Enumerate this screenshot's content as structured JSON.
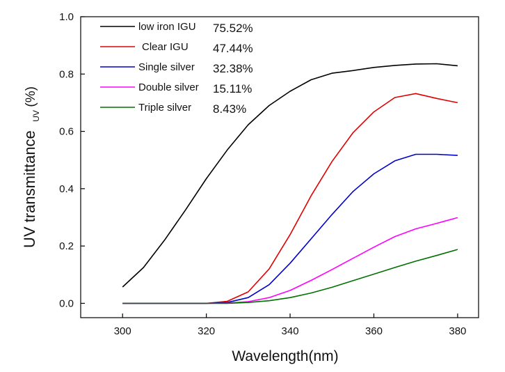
{
  "chart_data": {
    "type": "line",
    "title": "",
    "xlabel": "Wavelength(nm)",
    "ylabel_main": "UV transmittance",
    "ylabel_sub": "UV",
    "ylabel_suffix": "(%)",
    "xlim": [
      290,
      385
    ],
    "ylim": [
      -0.05,
      1.0
    ],
    "xticks": [
      300,
      320,
      340,
      360,
      380
    ],
    "yticks": [
      0.0,
      0.2,
      0.4,
      0.6,
      0.8,
      1.0
    ],
    "ytick_labels": [
      "0.0",
      "0.2",
      "0.4",
      "0.6",
      "0.8",
      "1.0"
    ],
    "grid": false,
    "legend_position": "top-left",
    "series": [
      {
        "name": "low iron IGU",
        "percent": "75.52%",
        "color": "#000000",
        "x": [
          300,
          305,
          310,
          315,
          320,
          325,
          330,
          335,
          340,
          345,
          350,
          355,
          360,
          365,
          370,
          375,
          380
        ],
        "y": [
          0.057,
          0.125,
          0.22,
          0.325,
          0.435,
          0.535,
          0.623,
          0.69,
          0.74,
          0.78,
          0.803,
          0.812,
          0.823,
          0.83,
          0.835,
          0.836,
          0.829
        ]
      },
      {
        "name": "Clear IGU",
        "percent": "47.44%",
        "color": "#e00000",
        "x": [
          300,
          305,
          310,
          315,
          320,
          325,
          330,
          335,
          340,
          345,
          350,
          355,
          360,
          365,
          370,
          375,
          380
        ],
        "y": [
          0.0,
          0.0,
          0.0,
          0.0,
          0.0,
          0.007,
          0.04,
          0.12,
          0.24,
          0.375,
          0.495,
          0.595,
          0.668,
          0.718,
          0.732,
          0.715,
          0.7
        ]
      },
      {
        "name": "Single silver",
        "percent": "32.38%",
        "color": "#0000cc",
        "x": [
          300,
          305,
          310,
          315,
          320,
          325,
          330,
          335,
          340,
          345,
          350,
          355,
          360,
          365,
          370,
          375,
          380
        ],
        "y": [
          0.0,
          0.0,
          0.0,
          0.0,
          0.0,
          0.003,
          0.02,
          0.065,
          0.14,
          0.225,
          0.31,
          0.39,
          0.452,
          0.497,
          0.52,
          0.52,
          0.516
        ]
      },
      {
        "name": "Double silver",
        "percent": "15.11%",
        "color": "#ff00ff",
        "x": [
          300,
          305,
          310,
          315,
          320,
          325,
          330,
          335,
          340,
          345,
          350,
          355,
          360,
          365,
          370,
          375,
          380
        ],
        "y": [
          0.0,
          0.0,
          0.0,
          0.0,
          0.0,
          0.001,
          0.006,
          0.02,
          0.045,
          0.08,
          0.118,
          0.157,
          0.196,
          0.233,
          0.26,
          0.279,
          0.299
        ]
      },
      {
        "name": "Triple silver",
        "percent": "8.43%",
        "color": "#007000",
        "x": [
          300,
          305,
          310,
          315,
          320,
          325,
          330,
          335,
          340,
          345,
          350,
          355,
          360,
          365,
          370,
          375,
          380
        ],
        "y": [
          0.0,
          0.0,
          0.0,
          0.0,
          0.0,
          0.0,
          0.003,
          0.009,
          0.02,
          0.036,
          0.056,
          0.079,
          0.102,
          0.125,
          0.147,
          0.167,
          0.188
        ]
      }
    ]
  }
}
